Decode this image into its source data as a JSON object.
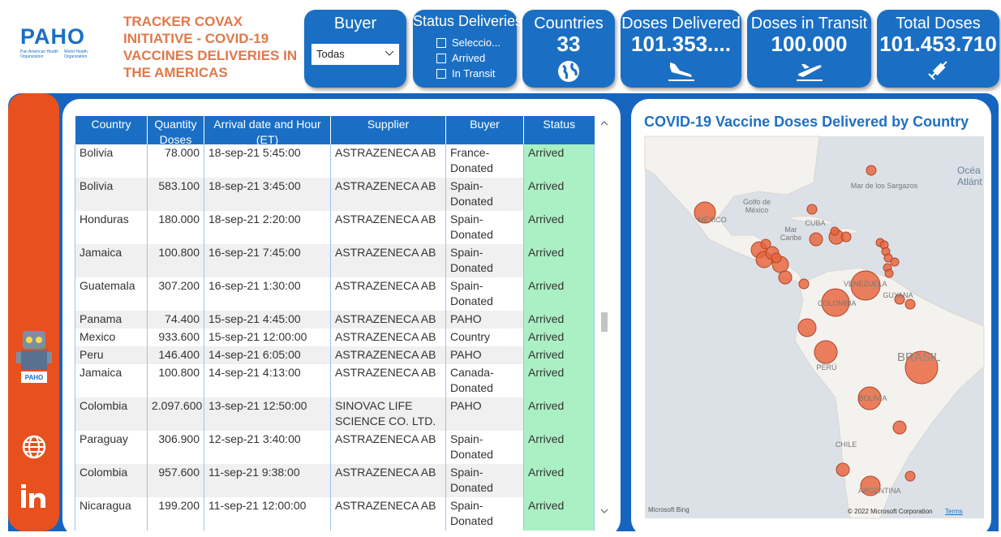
{
  "header": {
    "logo": "PAHO",
    "logo_sub": [
      "Pan American Health Organization",
      "World Health Organization"
    ],
    "title": "TRACKER COVAX INITIATIVE - COVID-19 VACCINES DELIVERIES IN THE AMERICAS"
  },
  "filters": {
    "buyer": {
      "title": "Buyer",
      "selected": "Todas"
    },
    "status": {
      "title": "Status Deliveries",
      "options": [
        "Seleccio...",
        "Arrived",
        "In Transit"
      ]
    }
  },
  "kpis": [
    {
      "label": "Countries",
      "value": "33"
    },
    {
      "label": "Doses Delivered",
      "value": "101.353...."
    },
    {
      "label": "Doses in Transit",
      "value": "100.000"
    },
    {
      "label": "Total Doses",
      "value": "101.453.710"
    }
  ],
  "table": {
    "columns": [
      "Country",
      "Quantity Doses",
      "Arrival date and Hour (ET)",
      "Supplier",
      "Buyer",
      "Status"
    ],
    "rows": [
      [
        "Bolivia",
        "78.000",
        "18-sep-21 5:45:00",
        "ASTRAZENECA AB",
        "France-Donated",
        "Arrived"
      ],
      [
        "Bolivia",
        "583.100",
        "18-sep-21 3:45:00",
        "ASTRAZENECA AB",
        "Spain-Donated",
        "Arrived"
      ],
      [
        "Honduras",
        "180.000",
        "18-sep-21 2:20:00",
        "ASTRAZENECA AB",
        "Spain-Donated",
        "Arrived"
      ],
      [
        "Jamaica",
        "100.800",
        "16-sep-21 7:45:00",
        "ASTRAZENECA AB",
        "Spain-Donated",
        "Arrived"
      ],
      [
        "Guatemala",
        "307.200",
        "16-sep-21 1:30:00",
        "ASTRAZENECA AB",
        "Spain-Donated",
        "Arrived"
      ],
      [
        "Panama",
        "74.400",
        "15-sep-21 4:45:00",
        "ASTRAZENECA AB",
        "PAHO",
        "Arrived"
      ],
      [
        "Mexico",
        "933.600",
        "15-sep-21 12:00:00",
        "ASTRAZENECA AB",
        "Country",
        "Arrived"
      ],
      [
        "Peru",
        "146.400",
        "14-sep-21 6:05:00",
        "ASTRAZENECA AB",
        "PAHO",
        "Arrived"
      ],
      [
        "Jamaica",
        "100.800",
        "14-sep-21 4:13:00",
        "ASTRAZENECA AB",
        "Canada-Donated",
        "Arrived"
      ],
      [
        "Colombia",
        "2.097.600",
        "13-sep-21 12:50:00",
        "SINOVAC LIFE SCIENCE CO. LTD.",
        "PAHO",
        "Arrived"
      ],
      [
        "Paraguay",
        "306.900",
        "12-sep-21 3:40:00",
        "ASTRAZENECA AB",
        "Spain-Donated",
        "Arrived"
      ],
      [
        "Colombia",
        "957.600",
        "11-sep-21 9:38:00",
        "ASTRAZENECA AB",
        "Spain-Donated",
        "Arrived"
      ],
      [
        "Nicaragua",
        "199.200",
        "11-sep-21 12:00:00",
        "ASTRAZENECA AB",
        "Spain-Donated",
        "Arrived"
      ]
    ]
  },
  "map": {
    "title": "COVID-19 Vaccine Doses Delivered by Country",
    "labels": [
      "MÉXICO",
      "Golfo de México",
      "Mar de los Sargazos",
      "CUBA",
      "Mar Caribe",
      "VENEZUELA",
      "GUYANA",
      "COLOMBIA",
      "PERÚ",
      "BRASIL",
      "BOLIVIA",
      "CHILE",
      "ARGENTINA",
      "Océa Atlánt"
    ],
    "attribution": [
      "Microsoft Bing",
      "© 2022 Microsoft Corporation",
      "Terms"
    ]
  }
}
